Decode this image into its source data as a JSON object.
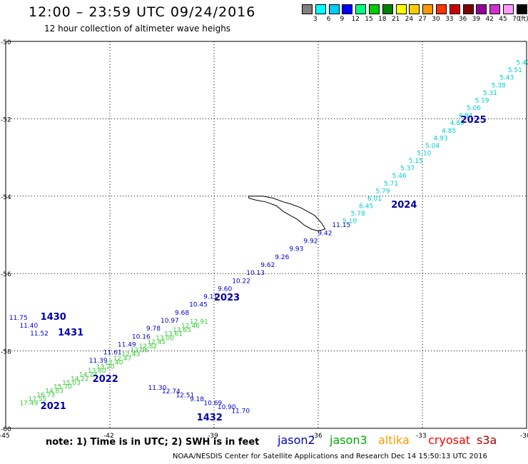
{
  "header": {
    "title": "12:00 – 23:59 UTC 09/24/2016",
    "subtitle": "12 hour collection of altimeter wave heighs"
  },
  "colorbar": {
    "unit": "(ft)",
    "labels": [
      "3",
      "6",
      "9",
      "12",
      "15",
      "18",
      "21",
      "24",
      "27",
      "30",
      "33",
      "36",
      "39",
      "42",
      "45",
      "70"
    ],
    "colors": [
      "#808080",
      "#00ffff",
      "#00ccff",
      "#0000ff",
      "#00ff80",
      "#00cc00",
      "#008000",
      "#ffff00",
      "#ffcc00",
      "#ff9900",
      "#ff3300",
      "#cc0000",
      "#800000",
      "#990099",
      "#cc33cc",
      "#ff99ff",
      "#000000"
    ]
  },
  "map": {
    "lon_ticks": [
      "-45",
      "-42",
      "-39",
      "-36",
      "-33",
      "-30"
    ],
    "lat_ticks": [
      "-50",
      "-52",
      "-54",
      "-56",
      "-58",
      "-60"
    ],
    "lon_range": [
      -45,
      -30
    ],
    "lat_range": [
      -60,
      -50
    ],
    "grid": "dotted",
    "land": "South Georgia Island outline (black)"
  },
  "chart_data": {
    "type": "scatter",
    "title": "12:00 – 23:59 UTC 09/24/2016",
    "subtitle": "12 hour collection of altimeter wave heighs",
    "xlabel": "",
    "ylabel": "",
    "xlim": [
      -45,
      -30
    ],
    "ylim": [
      -60,
      -50
    ],
    "series": [
      {
        "name": "jason2",
        "color": "#0000ff",
        "color_note": "light cyan for values below 6 ft",
        "values": [
          "5.42",
          "5.51",
          "5.43",
          "5.38",
          "5.31",
          "5.19",
          "5.06",
          "4.94",
          "4.86",
          "4.85",
          "4.93",
          "5.04",
          "5.10",
          "5.15",
          "5.37",
          "5.46",
          "5.71",
          "5.79",
          "6.01",
          "6.45",
          "5.78",
          "5.10",
          "11.15",
          "9.42",
          "9.92",
          "9.93",
          "9.26",
          "9.62",
          "10.13",
          "10.22",
          "9.60",
          "9.11",
          "10.45",
          "9.68",
          "10.97",
          "9.78",
          "10.16",
          "11.49",
          "11.61",
          "11.39",
          "11.75",
          "11.40",
          "11.52",
          "11.30",
          "12.74",
          "12.51",
          "9.18",
          "10.69",
          "10.90",
          "11.70"
        ]
      },
      {
        "name": "jason3",
        "color": "#00cc00",
        "values": [
          "17.49",
          "17.55",
          "16.73",
          "14.83",
          "15.70",
          "15.03",
          "14.22",
          "14.24",
          "13.80",
          "13.20",
          "12.40",
          "12.47",
          "12.43",
          "12.06",
          "12.82",
          "12.45",
          "13.00",
          "13.61",
          "13.65",
          "12.46",
          "12.91"
        ]
      }
    ],
    "pass_labels": [
      "2025",
      "2024",
      "2023",
      "2022",
      "2021",
      "1430",
      "1431",
      "1432"
    ]
  },
  "footer": {
    "note": "note: 1) Time is in UTC; 2) SWH is in feet",
    "legend": [
      {
        "label": "jason2",
        "color": "#0000cc"
      },
      {
        "label": "jason3",
        "color": "#00aa00"
      },
      {
        "label": "altika",
        "color": "#ff9900"
      },
      {
        "label": "cryosat",
        "color": "#ff0000"
      },
      {
        "label": "s3a",
        "color": "#aa0000"
      }
    ],
    "credit": "NOAA/NESDIS Center for Satellite Applications and Research    Dec 14 15:50:13 UTC 2016"
  }
}
